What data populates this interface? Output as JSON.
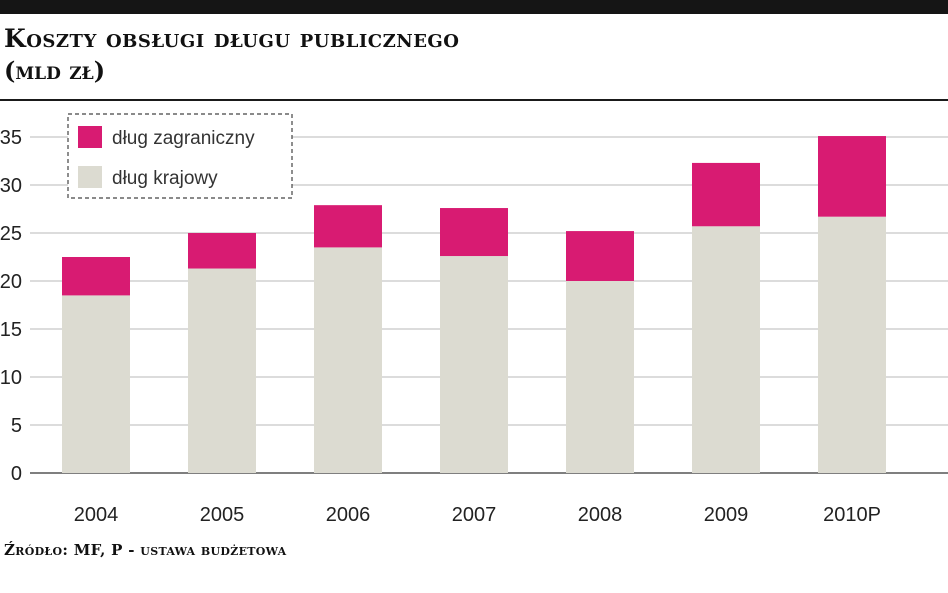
{
  "header": {
    "title": "Koszty obsługi długu publicznego",
    "subtitle": "(mld zł)"
  },
  "footer": {
    "source": "Źródło: MF, P - ustawa budżetowa"
  },
  "colors": {
    "foreign": "#d81b72",
    "domestic": "#dcdbd1",
    "grid": "#b8b8b8",
    "axis": "#555555"
  },
  "chart_data": {
    "type": "bar",
    "stacked": true,
    "categories": [
      "2004",
      "2005",
      "2006",
      "2007",
      "2008",
      "2009",
      "2010P"
    ],
    "series": [
      {
        "name": "dług krajowy",
        "values": [
          18.5,
          21.3,
          23.5,
          22.6,
          20.0,
          25.7,
          26.7
        ]
      },
      {
        "name": "dług zagraniczny",
        "values": [
          4.0,
          3.7,
          4.4,
          5.0,
          5.2,
          6.6,
          8.4
        ]
      }
    ],
    "y_ticks": [
      "0",
      "5",
      "10",
      "15",
      "20",
      "25",
      "30",
      "35"
    ],
    "ylim": [
      0,
      35
    ],
    "grid": true,
    "legend_position": "top-left",
    "legend_order": [
      "dług zagraniczny",
      "dług krajowy"
    ]
  }
}
